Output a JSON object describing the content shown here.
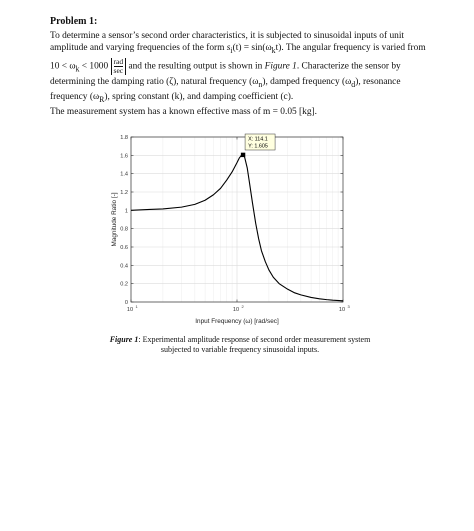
{
  "problem": {
    "heading": "Problem 1:",
    "line1": "To determine a sensor’s second order characteristics, it is subjected to sinusoidal inputs of unit amplitude and varying frequencies of the form ",
    "line1_math": "s",
    "line1_sub": "i",
    "line1_mid": "(t) = sin(ω",
    "line1_sub2": "k",
    "line1_end": "t). The angular frequency is varied from 10 < ω",
    "line1_sub3": "k",
    "line1_end2": " < 1000 ",
    "unit_num": "rad",
    "unit_den": "sec",
    "line2": " and the resulting output is shown in ",
    "line2_ref": "Figure 1",
    "line2_end": ". Characterize the sensor by determining the damping ratio (ζ), natural frequency (ω",
    "sub_n": "n",
    "line3": "), damped frequency (ω",
    "sub_d": "d",
    "line3_b": "), resonance frequency (ω",
    "sub_R": "R",
    "line3_c": "), spring constant (k), and damping coefficient (c).",
    "line4": "The measurement system has a known effective mass of m = 0.05 [kg]."
  },
  "caption": {
    "label": "Figure 1",
    "text": ": Experimental amplitude response of second order measurement system subjected to variable frequency sinusoidal inputs."
  },
  "chart_data": {
    "type": "line",
    "xscale": "log",
    "xlim": [
      10,
      1000
    ],
    "ylim": [
      0,
      1.8
    ],
    "xlabel": "Input Frequency (ω) [rad/sec]",
    "ylabel": "Magnitude Ratio [-]",
    "grid": true,
    "x_ticks": [
      {
        "base": "10",
        "exp": "1",
        "value": 10
      },
      {
        "base": "10",
        "exp": "2",
        "value": 100
      },
      {
        "base": "10",
        "exp": "3",
        "value": 1000
      }
    ],
    "y_ticks": [
      "0",
      "0.2",
      "0.4",
      "0.6",
      "0.8",
      "1",
      "1.2",
      "1.4",
      "1.6",
      "1.8"
    ],
    "series": [
      {
        "color": "#000000",
        "x": [
          10,
          15,
          20,
          30,
          40,
          50,
          60,
          70,
          80,
          90,
          100,
          105,
          110,
          114.1,
          118,
          125,
          130,
          140,
          150,
          160,
          170,
          185,
          200,
          220,
          250,
          300,
          350,
          400,
          500,
          600,
          700,
          800,
          1000
        ],
        "y": [
          1.0,
          1.01,
          1.015,
          1.035,
          1.065,
          1.11,
          1.17,
          1.24,
          1.33,
          1.42,
          1.52,
          1.57,
          1.6,
          1.605,
          1.58,
          1.46,
          1.33,
          1.08,
          0.86,
          0.69,
          0.56,
          0.44,
          0.35,
          0.27,
          0.2,
          0.14,
          0.1,
          0.078,
          0.05,
          0.035,
          0.026,
          0.02,
          0.013
        ]
      }
    ],
    "datatip": {
      "x": 114.1,
      "y": 1.605,
      "x_label": "X: 114.1",
      "y_label": "Y: 1.605"
    }
  }
}
